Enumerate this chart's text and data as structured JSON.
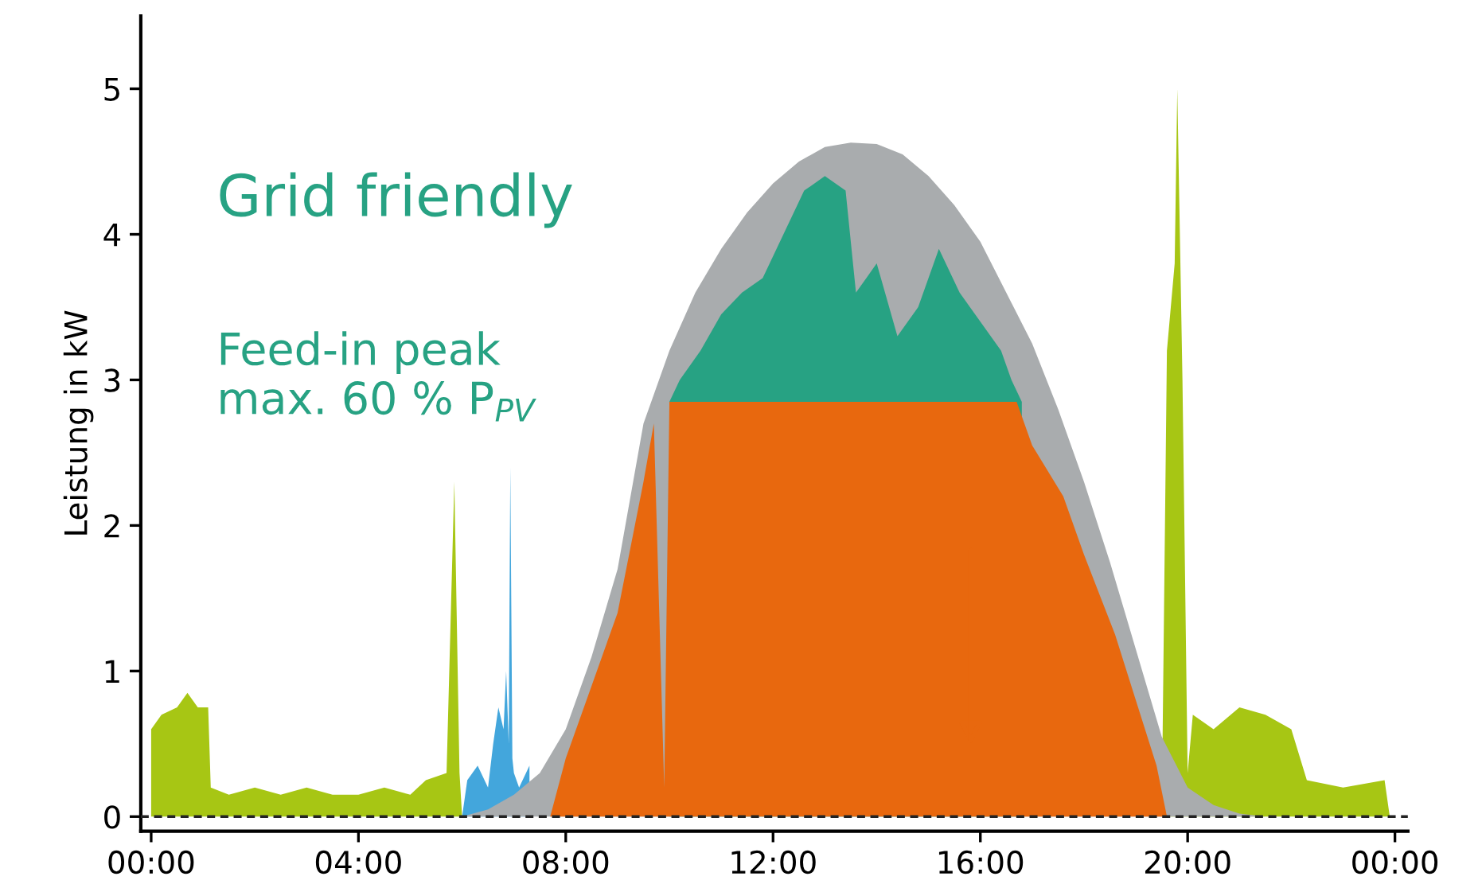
{
  "chart_data": {
    "type": "area",
    "ylabel": "Leistung in kW",
    "xlim": [
      -0.2,
      24.25
    ],
    "ylim": [
      -0.1,
      5.5
    ],
    "xticks": [
      {
        "value": 0,
        "label": "00:00"
      },
      {
        "value": 4,
        "label": "04:00"
      },
      {
        "value": 8,
        "label": "08:00"
      },
      {
        "value": 12,
        "label": "12:00"
      },
      {
        "value": 16,
        "label": "16:00"
      },
      {
        "value": 20,
        "label": "20:00"
      },
      {
        "value": 24,
        "label": "00:00"
      }
    ],
    "yticks": [
      0,
      1,
      2,
      3,
      4,
      5
    ],
    "grid": false,
    "legend": false,
    "series": [
      {
        "color": "#a9acae",
        "x": [
          6.0,
          6.5,
          7.0,
          7.5,
          8.0,
          8.5,
          9.0,
          9.5,
          10.0,
          10.5,
          11.0,
          11.5,
          12.0,
          12.5,
          13.0,
          13.5,
          14.0,
          14.5,
          15.0,
          15.5,
          16.0,
          16.5,
          17.0,
          17.5,
          18.0,
          18.5,
          19.0,
          19.5,
          20.0,
          20.5,
          21.0,
          21.5
        ],
        "values": [
          0,
          0.05,
          0.15,
          0.3,
          0.6,
          1.1,
          1.7,
          2.7,
          3.2,
          3.6,
          3.9,
          4.15,
          4.35,
          4.5,
          4.6,
          4.63,
          4.62,
          4.55,
          4.4,
          4.2,
          3.95,
          3.6,
          3.25,
          2.8,
          2.3,
          1.75,
          1.15,
          0.55,
          0.2,
          0.08,
          0.02,
          0
        ]
      },
      {
        "color": "#27a283",
        "x": [
          10.0,
          10.2,
          10.6,
          11.0,
          11.4,
          11.8,
          12.2,
          12.6,
          13.0,
          13.4,
          13.6,
          13.8,
          14.0,
          14.4,
          14.8,
          15.2,
          15.6,
          16.0,
          16.4,
          16.6,
          16.8
        ],
        "values": [
          2.85,
          3.0,
          3.2,
          3.45,
          3.6,
          3.7,
          4.0,
          4.3,
          4.4,
          4.3,
          3.6,
          3.7,
          3.8,
          3.3,
          3.5,
          3.9,
          3.6,
          3.4,
          3.2,
          3.0,
          2.85
        ]
      },
      {
        "color": "#e8680e",
        "x": [
          7.7,
          8.0,
          8.5,
          9.0,
          9.5,
          9.7,
          9.9,
          10.0,
          16.7,
          17.0,
          17.6,
          18.0,
          18.6,
          19.0,
          19.4,
          19.6
        ],
        "values": [
          0,
          0.4,
          0.9,
          1.4,
          2.3,
          2.7,
          0.2,
          2.85,
          2.85,
          2.55,
          2.2,
          1.8,
          1.25,
          0.8,
          0.35,
          0
        ]
      },
      {
        "color": "#43a6dc",
        "x": [
          6.0,
          6.1,
          6.3,
          6.5,
          6.6,
          6.7,
          6.8,
          6.85,
          6.9,
          6.93,
          6.97,
          7.0,
          7.1,
          7.3
        ],
        "values": [
          0,
          0.25,
          0.35,
          0.2,
          0.5,
          0.75,
          0.6,
          1.0,
          0.5,
          2.4,
          0.4,
          0.3,
          0.2,
          0.35
        ]
      },
      {
        "color": "#a7c614",
        "x": [
          0.0,
          0.2,
          0.5,
          0.7,
          0.9,
          1.1,
          1.15,
          1.5,
          2.0,
          2.5,
          3.0,
          3.5,
          4.0,
          4.5,
          5.0,
          5.3,
          5.7,
          5.85,
          5.95,
          6.0,
          19.5,
          19.6,
          19.75,
          19.8,
          19.9,
          20.0,
          20.1,
          20.5,
          21.0,
          21.5,
          22.0,
          22.3,
          23.0,
          23.8,
          23.9
        ],
        "values": [
          0.6,
          0.7,
          0.75,
          0.85,
          0.75,
          0.75,
          0.2,
          0.15,
          0.2,
          0.15,
          0.2,
          0.15,
          0.15,
          0.2,
          0.15,
          0.25,
          0.3,
          2.3,
          0.3,
          0,
          0,
          3.2,
          3.8,
          5.0,
          3.0,
          0.3,
          0.7,
          0.6,
          0.75,
          0.7,
          0.6,
          0.25,
          0.2,
          0.25,
          0
        ]
      }
    ],
    "ref_lines": [
      {
        "axis": "y",
        "value": 0,
        "color": "#222222",
        "line_style": "dashed"
      }
    ],
    "annotations": [
      "Grid friendly",
      "Feed-in peak\nmax. 60 % P$_{PV}$"
    ]
  }
}
